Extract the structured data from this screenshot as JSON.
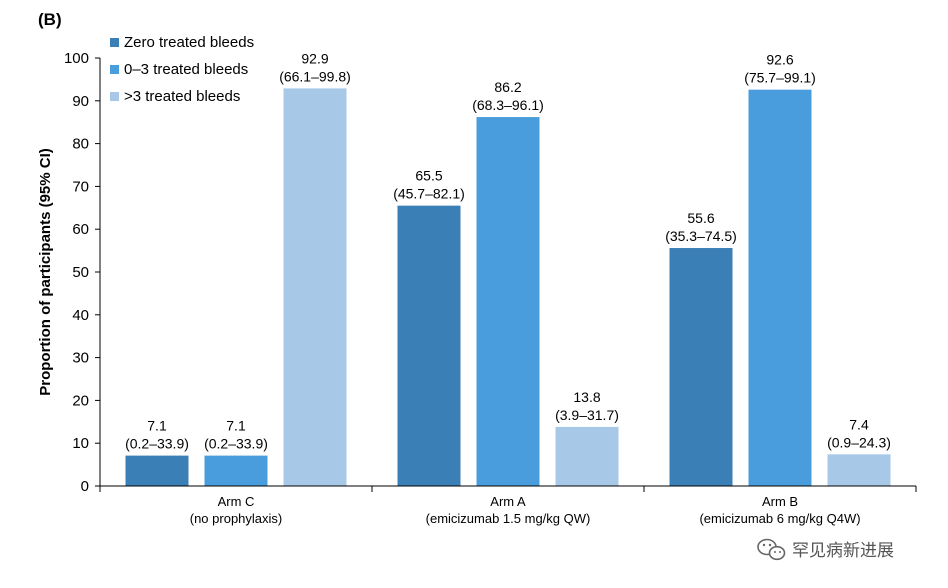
{
  "panel_label": "(B)",
  "watermark": {
    "text": "罕见病新进展",
    "icon": "wechat-icon"
  },
  "chart_data": {
    "type": "bar",
    "title": "",
    "ylabel": "Proportion of participants (95% CI)",
    "xlabel": "",
    "ylim": [
      0,
      100
    ],
    "yticks": [
      0,
      10,
      20,
      30,
      40,
      50,
      60,
      70,
      80,
      90,
      100
    ],
    "grid": false,
    "legend_position": "top-left",
    "categories": [
      {
        "line1": "Arm C",
        "line2": "(no prophylaxis)"
      },
      {
        "line1": "Arm A",
        "line2": "(emicizumab 1.5 mg/kg QW)"
      },
      {
        "line1": "Arm B",
        "line2": "(emicizumab 6 mg/kg Q4W)"
      }
    ],
    "series": [
      {
        "name": "Zero treated bleeds",
        "color": "#3a7fb5",
        "values": [
          7.1,
          65.5,
          55.6
        ],
        "ci": [
          "(0.2–33.9)",
          "(45.7–82.1)",
          "(35.3–74.5)"
        ]
      },
      {
        "name": "0–3 treated bleeds",
        "color": "#4a9ddc",
        "values": [
          7.1,
          86.2,
          92.6
        ],
        "ci": [
          "(0.2–33.9)",
          "(68.3–96.1)",
          "(75.7–99.1)"
        ]
      },
      {
        "name": ">3 treated bleeds",
        "color": "#a8c8e8",
        "values": [
          92.9,
          13.8,
          7.4
        ],
        "ci": [
          "(66.1–99.8)",
          "(3.9–31.7)",
          "(0.9–24.3)"
        ]
      }
    ]
  }
}
